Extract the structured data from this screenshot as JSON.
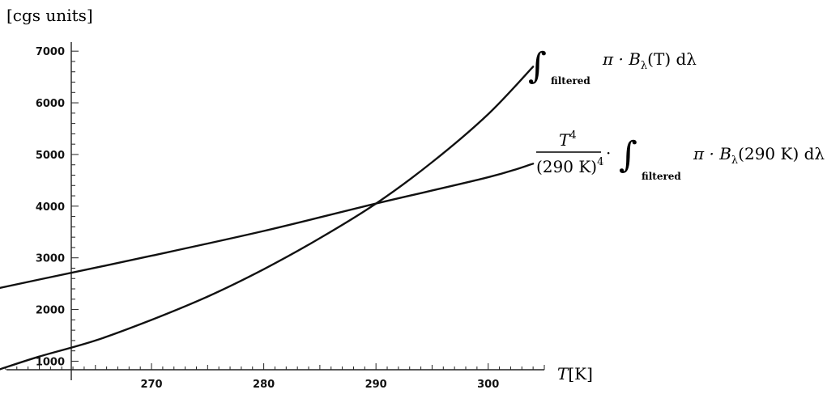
{
  "chart_data": {
    "type": "line",
    "unit_label": "[cgs units]",
    "xlabel": {
      "var": "T",
      "unit": "[K]"
    },
    "xlim": [
      256.5,
      305
    ],
    "ylim": [
      835,
      7050
    ],
    "x_ticks": [
      "270",
      "280",
      "290",
      "300"
    ],
    "y_ticks": [
      "1000",
      "2000",
      "3000",
      "4000",
      "5000",
      "6000",
      "7000"
    ],
    "series": [
      {
        "key": "filtered",
        "x": [
          256.5,
          260,
          265,
          270,
          275,
          280,
          285,
          290,
          295,
          300,
          304
        ],
        "y": [
          845,
          1090,
          1400,
          1800,
          2250,
          2780,
          3380,
          4050,
          4850,
          5780,
          6700
        ]
      },
      {
        "key": "t4",
        "x": [
          256.5,
          260,
          270,
          280,
          290,
          300,
          304
        ],
        "y": [
          2420,
          2580,
          3040,
          3520,
          4050,
          4560,
          4820
        ]
      }
    ],
    "annotations": {
      "filtered": {
        "integral": "∫",
        "subscript": "filtered",
        "expr_pi": "π · B",
        "expr_lambda": "λ",
        "expr_rest": "(T) dλ"
      },
      "t4": {
        "numerator": "T",
        "numerator_exp": "4",
        "denominator": "(290 K)",
        "denominator_exp": "4",
        "dot": "·",
        "integral": "∫",
        "subscript": "filtered",
        "expr_pi": "π · B",
        "expr_lambda": "λ",
        "expr_rest": "(290 K) dλ"
      }
    },
    "colors": {
      "line": "#111111",
      "axis": "#222222"
    }
  }
}
